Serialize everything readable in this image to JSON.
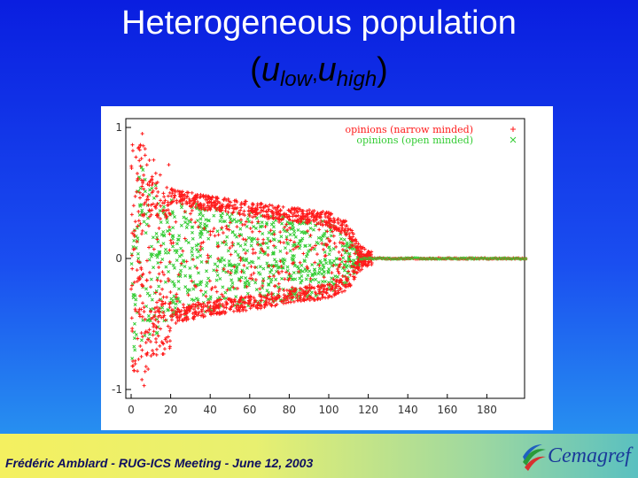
{
  "slide": {
    "title": "Heterogeneous population",
    "subtitle": {
      "open": "(",
      "u1": "u",
      "low": "low",
      "comma": ",",
      "u2": "u",
      "high": "high",
      "close": ")"
    }
  },
  "footer": {
    "text": "Frédéric Amblard - RUG-ICS Meeting - June 12, 2003",
    "logo_text": "Cemagref"
  },
  "colors": {
    "narrow": "#ff1a1a",
    "open": "#33cc33"
  },
  "chart_data": {
    "type": "scatter",
    "title": "",
    "xlabel": "",
    "ylabel": "",
    "xlim": [
      0,
      200
    ],
    "ylim": [
      -1,
      1
    ],
    "x_ticks": [
      "0",
      "20",
      "40",
      "60",
      "80",
      "100",
      "120",
      "140",
      "160",
      "180"
    ],
    "y_ticks": [
      {
        "value": 1,
        "label": "1"
      },
      {
        "value": 0,
        "label": "0"
      },
      {
        "value": -1,
        "label": "-1"
      }
    ],
    "legend_position": "top-right",
    "grid": false,
    "series": [
      {
        "name": "opinions (narrow minded)",
        "marker": "+",
        "color": "#ff1a1a",
        "upper_band_y": [
          [
            0,
            0.85
          ],
          [
            10,
            0.55
          ],
          [
            20,
            0.48
          ],
          [
            40,
            0.42
          ],
          [
            60,
            0.38
          ],
          [
            80,
            0.34
          ],
          [
            100,
            0.3
          ],
          [
            110,
            0.22
          ],
          [
            115,
            0.06
          ],
          [
            120,
            0.0
          ],
          [
            200,
            0.0
          ]
        ],
        "lower_band_y": [
          [
            0,
            -0.85
          ],
          [
            10,
            -0.6
          ],
          [
            20,
            -0.45
          ],
          [
            40,
            -0.38
          ],
          [
            60,
            -0.34
          ],
          [
            80,
            -0.29
          ],
          [
            100,
            -0.25
          ],
          [
            110,
            -0.18
          ],
          [
            115,
            -0.05
          ],
          [
            120,
            0.0
          ],
          [
            200,
            0.0
          ]
        ]
      },
      {
        "name": "opinions (open minded)",
        "marker": "x",
        "color": "#33cc33",
        "spread_y": [
          [
            0,
            0.8
          ],
          [
            20,
            0.45
          ],
          [
            60,
            0.36
          ],
          [
            100,
            0.28
          ],
          [
            110,
            0.18
          ],
          [
            118,
            0.0
          ],
          [
            200,
            0.0
          ]
        ]
      }
    ]
  }
}
